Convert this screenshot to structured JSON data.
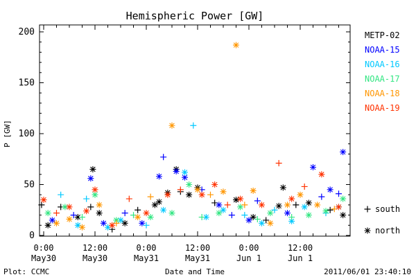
{
  "chart_data": {
    "type": "scatter",
    "title": "Hemispheric Power [GW]",
    "ylabel": "P [GW]",
    "xlabel": "Date and Time",
    "ylim": [
      0,
      200
    ],
    "y_ticks": [
      0,
      50,
      100,
      150,
      200
    ],
    "xlim_hours": [
      0,
      60
    ],
    "x_ticks": [
      {
        "h": 0,
        "time": "0:00",
        "date": "May30"
      },
      {
        "h": 12,
        "time": "12:00",
        "date": "May30"
      },
      {
        "h": 24,
        "time": "0:00",
        "date": "May31"
      },
      {
        "h": 36,
        "time": "12:00",
        "date": "May31"
      },
      {
        "h": 48,
        "time": "0:00",
        "date": "Jun 1"
      },
      {
        "h": 60,
        "time": "12:00",
        "date": "Jun 1"
      }
    ],
    "x_minor_hours": [
      3,
      6,
      9,
      15,
      18,
      21,
      27,
      30,
      33,
      39,
      42,
      45,
      51,
      54,
      57,
      63,
      66,
      69
    ],
    "series": [
      {
        "name": "METP-02",
        "color": "#000000",
        "points": [
          {
            "h": -0.5,
            "v": 30,
            "m": "+"
          },
          {
            "h": 1,
            "v": 10,
            "m": "*"
          },
          {
            "h": 4,
            "v": 28,
            "m": "+"
          },
          {
            "h": 8,
            "v": 18,
            "m": "*"
          },
          {
            "h": 11,
            "v": 28,
            "m": "+"
          },
          {
            "h": 11.5,
            "v": 65,
            "m": "*"
          },
          {
            "h": 13,
            "v": 22,
            "m": "*"
          },
          {
            "h": 16,
            "v": 6,
            "m": "+"
          },
          {
            "h": 19,
            "v": 12,
            "m": "*"
          },
          {
            "h": 22,
            "v": 25,
            "m": "+"
          },
          {
            "h": 26,
            "v": 30,
            "m": "*"
          },
          {
            "h": 27,
            "v": 33,
            "m": "*"
          },
          {
            "h": 29,
            "v": 42,
            "m": "*"
          },
          {
            "h": 31,
            "v": 65,
            "m": "*"
          },
          {
            "h": 32,
            "v": 43,
            "m": "+"
          },
          {
            "h": 34,
            "v": 40,
            "m": "*"
          },
          {
            "h": 36,
            "v": 47,
            "m": "*"
          },
          {
            "h": 40,
            "v": 32,
            "m": "+"
          },
          {
            "h": 45,
            "v": 35,
            "m": "*"
          },
          {
            "h": 49,
            "v": 18,
            "m": "*"
          },
          {
            "h": 52,
            "v": 15,
            "m": "+"
          },
          {
            "h": 55,
            "v": 29,
            "m": "*"
          },
          {
            "h": 56,
            "v": 47,
            "m": "*"
          },
          {
            "h": 59,
            "v": 30,
            "m": "+"
          },
          {
            "h": 62,
            "v": 32,
            "m": "*"
          },
          {
            "h": 67,
            "v": 25,
            "m": "+"
          },
          {
            "h": 70,
            "v": 20,
            "m": "*"
          }
        ]
      },
      {
        "name": "NOAA-15",
        "color": "#0000ff",
        "points": [
          {
            "h": 2,
            "v": 15,
            "m": "*"
          },
          {
            "h": 7,
            "v": 20,
            "m": "+"
          },
          {
            "h": 11,
            "v": 56,
            "m": "*"
          },
          {
            "h": 14,
            "v": 12,
            "m": "*"
          },
          {
            "h": 19,
            "v": 22,
            "m": "+"
          },
          {
            "h": 23,
            "v": 12,
            "m": "*"
          },
          {
            "h": 27,
            "v": 58,
            "m": "*"
          },
          {
            "h": 28,
            "v": 77,
            "m": "+"
          },
          {
            "h": 31,
            "v": 63,
            "m": "*"
          },
          {
            "h": 33,
            "v": 57,
            "m": "*"
          },
          {
            "h": 37,
            "v": 45,
            "m": "+"
          },
          {
            "h": 41,
            "v": 30,
            "m": "*"
          },
          {
            "h": 44,
            "v": 20,
            "m": "+"
          },
          {
            "h": 48,
            "v": 15,
            "m": "*"
          },
          {
            "h": 50,
            "v": 34,
            "m": "+"
          },
          {
            "h": 57,
            "v": 22,
            "m": "*"
          },
          {
            "h": 63,
            "v": 67,
            "m": "*"
          },
          {
            "h": 65,
            "v": 38,
            "m": "+"
          },
          {
            "h": 67,
            "v": 45,
            "m": "*"
          },
          {
            "h": 69,
            "v": 41,
            "m": "+"
          },
          {
            "h": 70,
            "v": 82,
            "m": "*"
          }
        ]
      },
      {
        "name": "NOAA-16",
        "color": "#00c8ff",
        "points": [
          {
            "h": 4,
            "v": 40,
            "m": "+"
          },
          {
            "h": 8,
            "v": 10,
            "m": "*"
          },
          {
            "h": 10,
            "v": 36,
            "m": "+"
          },
          {
            "h": 15,
            "v": 8,
            "m": "*"
          },
          {
            "h": 18,
            "v": 15,
            "m": "*"
          },
          {
            "h": 24,
            "v": 10,
            "m": "+"
          },
          {
            "h": 28,
            "v": 25,
            "m": "*"
          },
          {
            "h": 33,
            "v": 62,
            "m": "*"
          },
          {
            "h": 35,
            "v": 108,
            "m": "+"
          },
          {
            "h": 38,
            "v": 18,
            "m": "*"
          },
          {
            "h": 42,
            "v": 25,
            "m": "*"
          },
          {
            "h": 47,
            "v": 20,
            "m": "+"
          },
          {
            "h": 51,
            "v": 12,
            "m": "*"
          },
          {
            "h": 54,
            "v": 25,
            "m": "+"
          },
          {
            "h": 58,
            "v": 14,
            "m": "*"
          },
          {
            "h": 61,
            "v": 28,
            "m": "*"
          },
          {
            "h": 66,
            "v": 22,
            "m": "+"
          },
          {
            "h": 69,
            "v": 28,
            "m": "*"
          }
        ]
      },
      {
        "name": "NOAA-17",
        "color": "#32e682",
        "points": [
          {
            "h": 1,
            "v": 22,
            "m": "*"
          },
          {
            "h": 5,
            "v": 28,
            "m": "*"
          },
          {
            "h": 9,
            "v": 18,
            "m": "+"
          },
          {
            "h": 12,
            "v": 40,
            "m": "*"
          },
          {
            "h": 17,
            "v": 15,
            "m": "*"
          },
          {
            "h": 21,
            "v": 20,
            "m": "+"
          },
          {
            "h": 25,
            "v": 18,
            "m": "*"
          },
          {
            "h": 30,
            "v": 22,
            "m": "*"
          },
          {
            "h": 34,
            "v": 50,
            "m": "*"
          },
          {
            "h": 37,
            "v": 18,
            "m": "+"
          },
          {
            "h": 41,
            "v": 22,
            "m": "*"
          },
          {
            "h": 46,
            "v": 28,
            "m": "*"
          },
          {
            "h": 50,
            "v": 16,
            "m": "+"
          },
          {
            "h": 53,
            "v": 22,
            "m": "*"
          },
          {
            "h": 58,
            "v": 18,
            "m": "+"
          },
          {
            "h": 62,
            "v": 20,
            "m": "*"
          },
          {
            "h": 66,
            "v": 24,
            "m": "*"
          },
          {
            "h": 70,
            "v": 36,
            "m": "*"
          }
        ]
      },
      {
        "name": "NOAA-18",
        "color": "#ff9600",
        "points": [
          {
            "h": 3,
            "v": 12,
            "m": "*"
          },
          {
            "h": 6,
            "v": 16,
            "m": "*"
          },
          {
            "h": 9,
            "v": 8,
            "m": "*"
          },
          {
            "h": 13,
            "v": 30,
            "m": "*"
          },
          {
            "h": 17,
            "v": 12,
            "m": "+"
          },
          {
            "h": 22,
            "v": 18,
            "m": "*"
          },
          {
            "h": 25,
            "v": 38,
            "m": "+"
          },
          {
            "h": 30,
            "v": 108,
            "m": "*"
          },
          {
            "h": 36,
            "v": 45,
            "m": "*"
          },
          {
            "h": 39,
            "v": 40,
            "m": "+"
          },
          {
            "h": 42,
            "v": 43,
            "m": "*"
          },
          {
            "h": 45,
            "v": 187,
            "m": "*"
          },
          {
            "h": 47,
            "v": 30,
            "m": "+"
          },
          {
            "h": 49,
            "v": 44,
            "m": "*"
          },
          {
            "h": 53,
            "v": 12,
            "m": "*"
          },
          {
            "h": 57,
            "v": 30,
            "m": "*"
          },
          {
            "h": 60,
            "v": 40,
            "m": "*"
          },
          {
            "h": 64,
            "v": 30,
            "m": "*"
          },
          {
            "h": 68,
            "v": 26,
            "m": "+"
          }
        ]
      },
      {
        "name": "NOAA-19",
        "color": "#ff3200",
        "points": [
          {
            "h": 0,
            "v": 35,
            "m": "*"
          },
          {
            "h": 3,
            "v": 22,
            "m": "+"
          },
          {
            "h": 6,
            "v": 28,
            "m": "*"
          },
          {
            "h": 10,
            "v": 24,
            "m": "*"
          },
          {
            "h": 12,
            "v": 45,
            "m": "*"
          },
          {
            "h": 16,
            "v": 10,
            "m": "*"
          },
          {
            "h": 20,
            "v": 36,
            "m": "+"
          },
          {
            "h": 24,
            "v": 22,
            "m": "*"
          },
          {
            "h": 29,
            "v": 40,
            "m": "*"
          },
          {
            "h": 32,
            "v": 45,
            "m": "+"
          },
          {
            "h": 37,
            "v": 40,
            "m": "*"
          },
          {
            "h": 40,
            "v": 50,
            "m": "*"
          },
          {
            "h": 43,
            "v": 30,
            "m": "+"
          },
          {
            "h": 46,
            "v": 36,
            "m": "*"
          },
          {
            "h": 51,
            "v": 30,
            "m": "*"
          },
          {
            "h": 55,
            "v": 71,
            "m": "+"
          },
          {
            "h": 58,
            "v": 36,
            "m": "*"
          },
          {
            "h": 61,
            "v": 48,
            "m": "+"
          },
          {
            "h": 65,
            "v": 60,
            "m": "*"
          },
          {
            "h": 69,
            "v": 28,
            "m": "*"
          }
        ]
      }
    ],
    "marker_key": [
      {
        "symbol": "+",
        "label": "south"
      },
      {
        "symbol": "*",
        "label": "north"
      }
    ]
  },
  "footer": {
    "left": "Plot: CCMC",
    "right": "2011/06/01 23:40:10"
  }
}
